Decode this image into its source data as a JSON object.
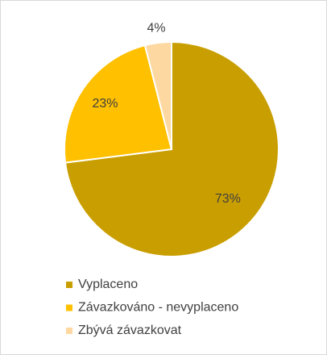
{
  "chart_data": {
    "type": "pie",
    "categories": [
      "Vyplaceno",
      "Závazkováno - nevyplaceno",
      "Zbývá závazkovat"
    ],
    "values": [
      73,
      23,
      4
    ],
    "value_labels": [
      "73%",
      "23%",
      "4%"
    ],
    "colors": [
      "#c99e00",
      "#ffc000",
      "#fdd8a0"
    ],
    "legend": "bottom"
  }
}
